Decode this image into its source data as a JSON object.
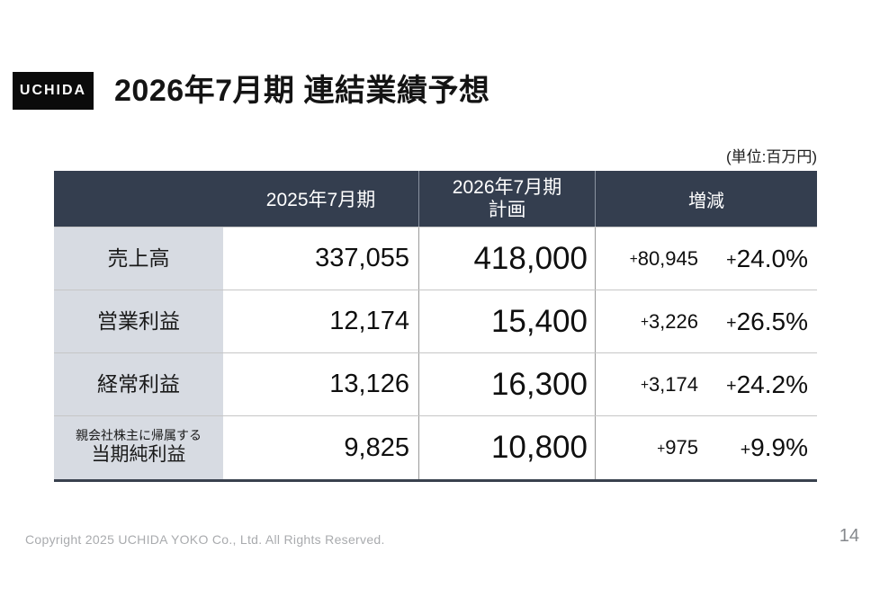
{
  "logo": {
    "text": "UCHIDA"
  },
  "header": {
    "title": "2026年7月期 連結業績予想"
  },
  "unit_note": "(単位:百万円)",
  "table": {
    "header": {
      "fy2025": "2025年7月期",
      "plan_line1": "2026年7月期",
      "plan_line2": "計画",
      "change": "増減"
    },
    "rows": [
      {
        "label_sub": "",
        "label": "売上高",
        "fy2025": "337,055",
        "plan": "418,000",
        "delta": "+80,945",
        "pct": "+24.0%"
      },
      {
        "label_sub": "",
        "label": "営業利益",
        "fy2025": "12,174",
        "plan": "15,400",
        "delta": "+3,226",
        "pct": "+26.5%"
      },
      {
        "label_sub": "",
        "label": "経常利益",
        "fy2025": "13,126",
        "plan": "16,300",
        "delta": "+3,174",
        "pct": "+24.2%"
      },
      {
        "label_sub": "親会社株主に帰属する",
        "label": "当期純利益",
        "fy2025": "9,825",
        "plan": "10,800",
        "delta": "+975",
        "pct": "+9.9%"
      }
    ]
  },
  "footer": {
    "copyright": "Copyright 2025 UCHIDA YOKO Co., Ltd. All Rights Reserved.",
    "page_number": "14"
  },
  "colors": {
    "table_header_bg": "#343e4f",
    "row_label_bg": "#d7dbe2",
    "table_bottom_border": "#39414e",
    "logo_bg": "#0b0b0b"
  }
}
